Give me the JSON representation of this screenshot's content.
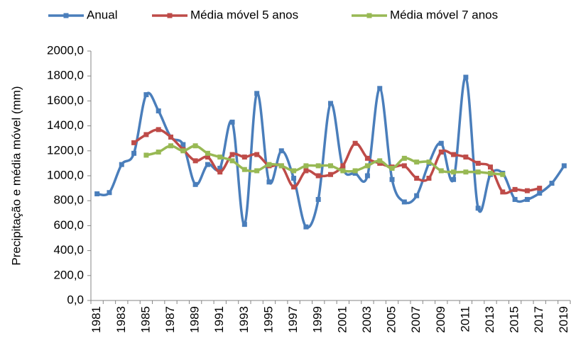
{
  "chart_data": {
    "type": "line",
    "y_label": "Precipitação e média móvel (mm)",
    "categories": [
      "1981",
      null,
      "1983",
      null,
      "1985",
      null,
      "1987",
      null,
      "1989",
      null,
      "1991",
      null,
      "1993",
      null,
      "1995",
      null,
      "1997",
      null,
      "1999",
      null,
      "2001",
      null,
      "2003",
      null,
      "2005",
      null,
      "2007",
      null,
      "2009",
      null,
      "2011",
      null,
      "2013",
      null,
      "2015",
      null,
      "2017",
      null,
      "2019"
    ],
    "series": [
      {
        "name": "Anual",
        "color": "#4a7ebb",
        "values": [
          855,
          865,
          1090,
          1180,
          1650,
          1520,
          1310,
          1250,
          930,
          1090,
          1060,
          1430,
          610,
          1660,
          950,
          1200,
          980,
          590,
          810,
          1580,
          1060,
          1020,
          1000,
          1700,
          970,
          790,
          840,
          1100,
          1260,
          970,
          1790,
          740,
          1010,
          1020,
          810,
          810,
          860,
          940,
          1080
        ]
      },
      {
        "name": "Média móvel 5 anos",
        "color": "#be4b48",
        "values": [
          null,
          null,
          null,
          1265,
          1330,
          1370,
          1310,
          1210,
          1120,
          1150,
          1030,
          1170,
          1150,
          1170,
          1080,
          1080,
          910,
          1040,
          1000,
          1010,
          1080,
          1260,
          1140,
          1100,
          1070,
          1080,
          980,
          980,
          1190,
          1170,
          1150,
          1100,
          1070,
          870,
          890,
          880,
          900,
          null,
          null
        ]
      },
      {
        "name": "Média móvel 7 anos",
        "color": "#98b954",
        "values": [
          null,
          null,
          null,
          null,
          1165,
          1190,
          1240,
          1200,
          1240,
          1180,
          1150,
          1120,
          1050,
          1040,
          1090,
          1080,
          1040,
          1080,
          1080,
          1080,
          1040,
          1040,
          1080,
          1120,
          1060,
          1140,
          1110,
          1110,
          1040,
          1030,
          1030,
          1030,
          1020,
          1010,
          null,
          null,
          null,
          null,
          null
        ]
      }
    ],
    "ylim": [
      0,
      2000
    ],
    "yticks": [
      {
        "value": 0,
        "label": "0,0"
      },
      {
        "value": 200,
        "label": "200,0"
      },
      {
        "value": 400,
        "label": "400,0"
      },
      {
        "value": 600,
        "label": "600,0"
      },
      {
        "value": 800,
        "label": "800,0"
      },
      {
        "value": 1000,
        "label": "1000,0"
      },
      {
        "value": 1200,
        "label": "1200,0"
      },
      {
        "value": 1400,
        "label": "1400,0"
      },
      {
        "value": 1600,
        "label": "1600,0"
      },
      {
        "value": 1800,
        "label": "1800,0"
      },
      {
        "value": 2000,
        "label": "2000,0"
      }
    ],
    "legend": "top"
  }
}
